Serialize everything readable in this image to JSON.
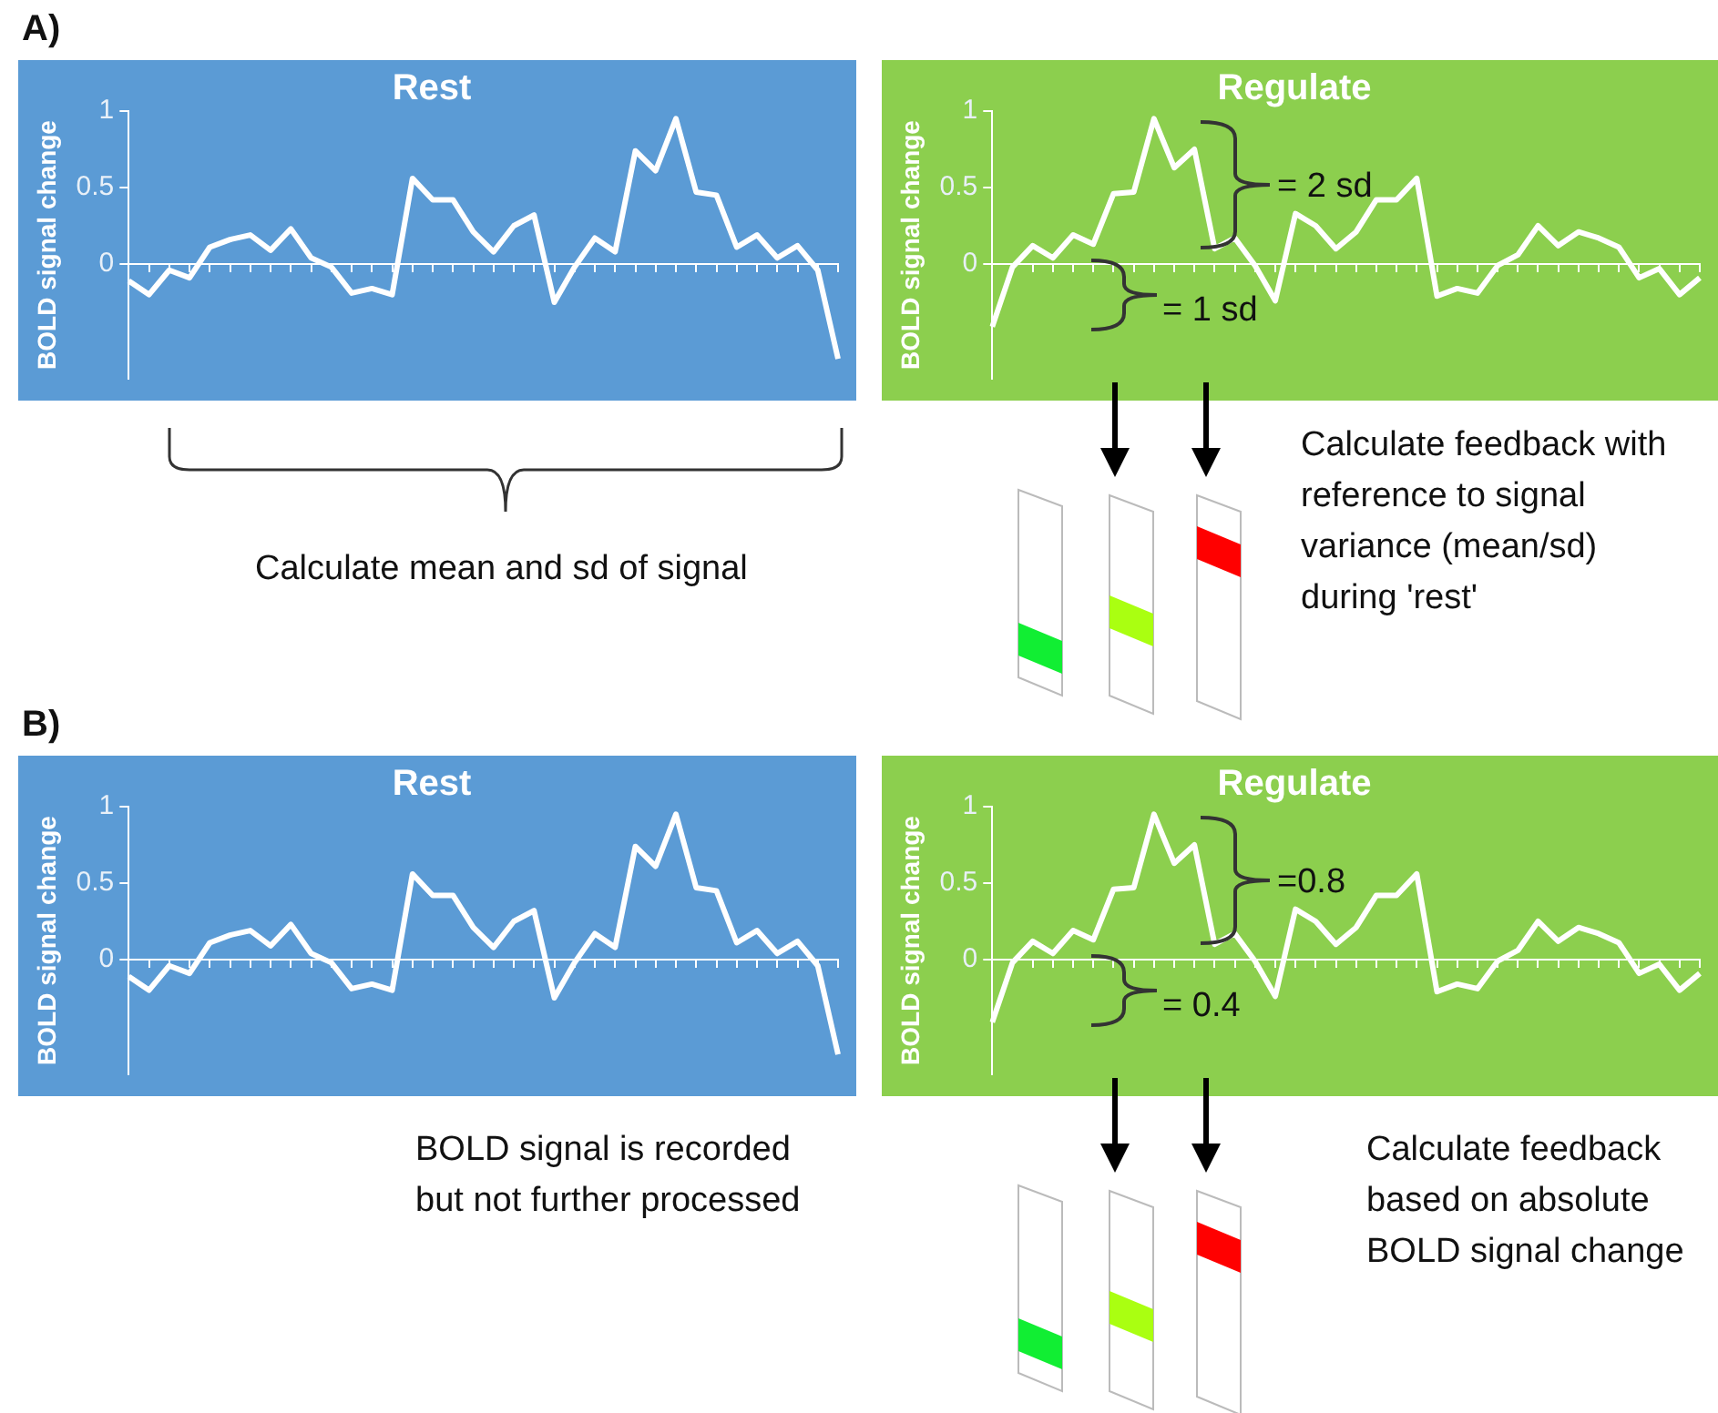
{
  "chart_data": [
    {
      "type": "line",
      "title": "Rest",
      "ylabel": "BOLD signal change",
      "color": "#ffffff",
      "tick_labels": "y",
      "ylim": [
        -0.75,
        1
      ],
      "yticks": [
        0,
        0.5,
        1
      ],
      "categories": [
        null,
        null,
        null,
        null,
        null,
        null,
        null,
        null,
        null,
        null,
        null,
        null,
        null,
        null,
        null,
        null,
        null,
        null,
        null,
        null,
        null,
        null,
        null,
        null,
        null,
        null,
        null,
        null,
        null,
        null,
        null,
        null,
        null,
        null,
        null,
        null
      ],
      "values": [
        -0.11,
        -0.2,
        -0.04,
        -0.09,
        0.11,
        0.16,
        0.19,
        0.09,
        0.23,
        0.04,
        -0.02,
        -0.19,
        -0.16,
        -0.2,
        0.56,
        0.42,
        0.42,
        0.21,
        0.08,
        0.25,
        0.32,
        -0.25,
        -0.02,
        0.17,
        0.08,
        0.74,
        0.61,
        0.95,
        0.47,
        0.45,
        0.11,
        0.19,
        0.04,
        0.12,
        -0.04,
        -0.62
      ],
      "annotations": [
        "A)",
        "Calculate mean and sd of signal"
      ]
    },
    {
      "type": "line",
      "title": "Regulate",
      "ylabel": "BOLD signal change",
      "color": "#ffffff",
      "tick_labels": "y",
      "ylim": [
        -0.75,
        1
      ],
      "yticks": [
        0,
        0.5,
        1
      ],
      "categories": [
        null,
        null,
        null,
        null,
        null,
        null,
        null,
        null,
        null,
        null,
        null,
        null,
        null,
        null,
        null,
        null,
        null,
        null,
        null,
        null,
        null,
        null,
        null,
        null,
        null,
        null,
        null,
        null,
        null,
        null,
        null,
        null,
        null,
        null,
        null,
        null
      ],
      "values": [
        -0.41,
        -0.02,
        0.12,
        0.04,
        0.19,
        0.13,
        0.46,
        0.47,
        0.95,
        0.63,
        0.75,
        0.1,
        0.17,
        -0.01,
        -0.24,
        0.33,
        0.25,
        0.1,
        0.21,
        0.42,
        0.42,
        0.56,
        -0.21,
        -0.16,
        -0.19,
        -0.01,
        0.06,
        0.25,
        0.12,
        0.21,
        0.17,
        0.11,
        -0.09,
        -0.03,
        -0.2,
        -0.09
      ],
      "annotations": [
        "= 2 sd",
        "= 1 sd",
        "Calculate feedback with reference to signal variance (mean/sd) during 'rest'"
      ]
    },
    {
      "type": "line",
      "title": "Rest",
      "ylabel": "BOLD signal change",
      "color": "#ffffff",
      "tick_labels": "y",
      "ylim": [
        -0.75,
        1
      ],
      "yticks": [
        0,
        0.5,
        1
      ],
      "categories": [
        null,
        null,
        null,
        null,
        null,
        null,
        null,
        null,
        null,
        null,
        null,
        null,
        null,
        null,
        null,
        null,
        null,
        null,
        null,
        null,
        null,
        null,
        null,
        null,
        null,
        null,
        null,
        null,
        null,
        null,
        null,
        null,
        null,
        null,
        null,
        null
      ],
      "values": [
        -0.11,
        -0.2,
        -0.04,
        -0.09,
        0.11,
        0.16,
        0.19,
        0.09,
        0.23,
        0.04,
        -0.02,
        -0.19,
        -0.16,
        -0.2,
        0.56,
        0.42,
        0.42,
        0.21,
        0.08,
        0.25,
        0.32,
        -0.25,
        -0.02,
        0.17,
        0.08,
        0.74,
        0.61,
        0.95,
        0.47,
        0.45,
        0.11,
        0.19,
        0.04,
        0.12,
        -0.04,
        -0.62
      ],
      "annotations": [
        "B)",
        "BOLD signal is recorded but not further processed"
      ]
    },
    {
      "type": "line",
      "title": "Regulate",
      "ylabel": "BOLD signal change",
      "color": "#ffffff",
      "tick_labels": "y",
      "ylim": [
        -0.75,
        1
      ],
      "yticks": [
        0,
        0.5,
        1
      ],
      "categories": [
        null,
        null,
        null,
        null,
        null,
        null,
        null,
        null,
        null,
        null,
        null,
        null,
        null,
        null,
        null,
        null,
        null,
        null,
        null,
        null,
        null,
        null,
        null,
        null,
        null,
        null,
        null,
        null,
        null,
        null,
        null,
        null,
        null,
        null,
        null,
        null
      ],
      "values": [
        -0.41,
        -0.02,
        0.12,
        0.04,
        0.19,
        0.13,
        0.46,
        0.47,
        0.95,
        0.63,
        0.75,
        0.1,
        0.17,
        -0.01,
        -0.24,
        0.33,
        0.25,
        0.1,
        0.21,
        0.42,
        0.42,
        0.56,
        -0.21,
        -0.16,
        -0.19,
        -0.01,
        0.06,
        0.25,
        0.12,
        0.21,
        0.17,
        0.11,
        -0.09,
        -0.03,
        -0.2,
        -0.09
      ],
      "annotations": [
        "=0.8",
        "= 0.4",
        "Calculate feedback based on absolute BOLD signal change"
      ]
    }
  ]
}
